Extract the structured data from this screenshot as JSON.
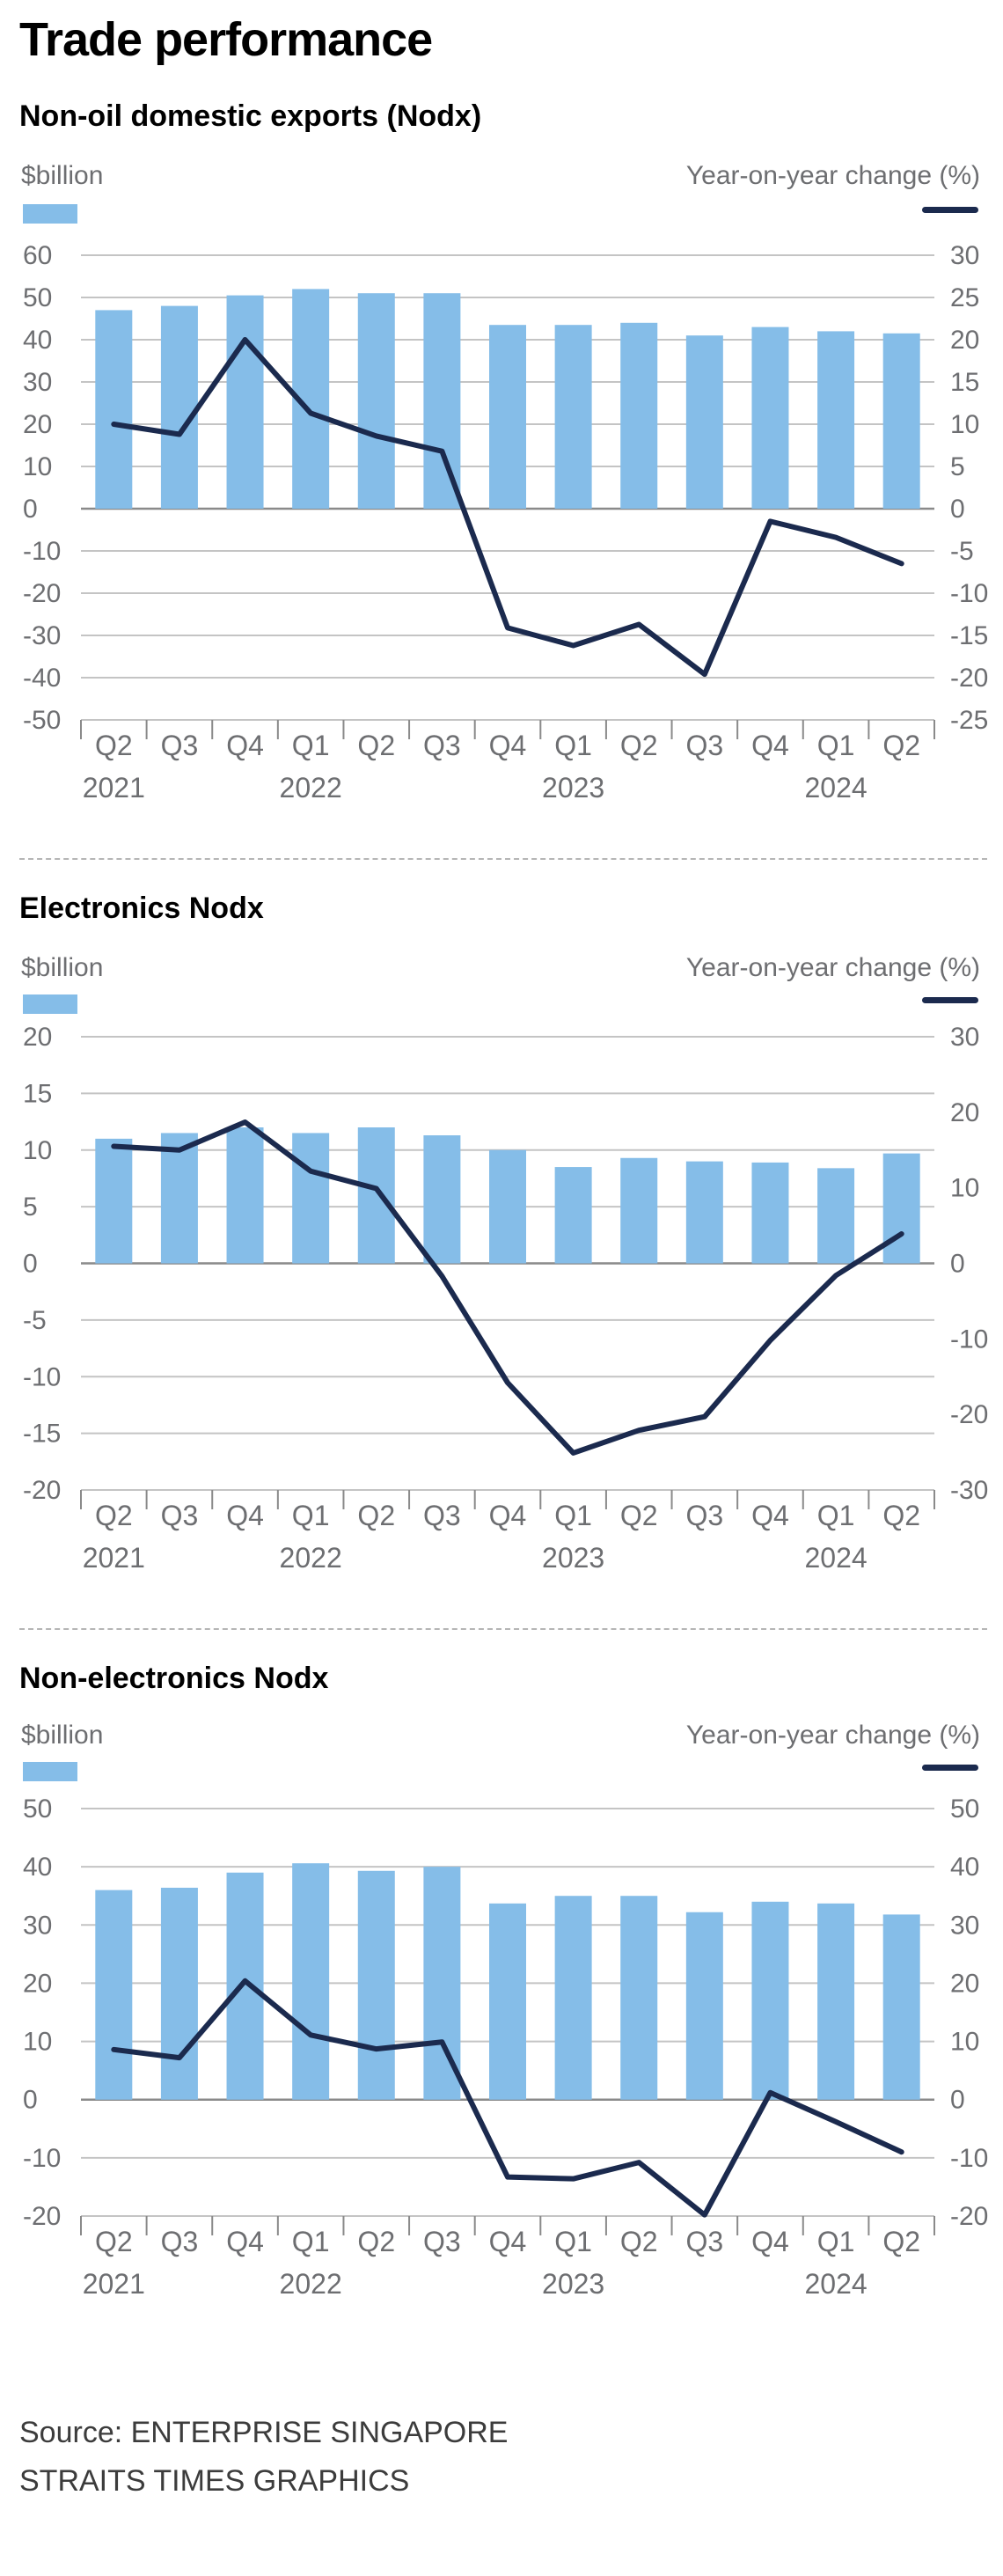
{
  "title": "Trade performance",
  "source": "Source: ENTERPRISE SINGAPORE",
  "credit": "STRAITS TIMES GRAPHICS",
  "colors": {
    "bar": "#85bde8",
    "line": "#1b2a4e",
    "grid": "#c4c4c4",
    "axis": "#6d6e71"
  },
  "chart_data": [
    {
      "type": "bar",
      "title": "Non-oil domestic exports (Nodx)",
      "left_unit": "$billion",
      "right_unit": "Year-on-year change (%)",
      "categories": [
        "Q2",
        "Q3",
        "Q4",
        "Q1",
        "Q2",
        "Q3",
        "Q4",
        "Q1",
        "Q2",
        "Q3",
        "Q4",
        "Q1",
        "Q2"
      ],
      "years": [
        "2021",
        "",
        "",
        "2022",
        "",
        "",
        "",
        "2023",
        "",
        "",
        "",
        "2024",
        ""
      ],
      "left_ticks": [
        "60",
        "50",
        "40",
        "30",
        "20",
        "10",
        "0",
        "-10",
        "-20",
        "-30",
        "-40",
        "-50"
      ],
      "right_ticks": [
        "30",
        "25",
        "20",
        "15",
        "10",
        "5",
        "0",
        "-5",
        "-10",
        "-15",
        "-20",
        "-25"
      ],
      "left_ylim": [
        -50,
        60
      ],
      "right_ylim": [
        -25,
        30
      ],
      "series": [
        {
          "kind": "bar",
          "axis": "left",
          "values": [
            47,
            48,
            50.5,
            52,
            51,
            51,
            43.5,
            43.5,
            44,
            41,
            43,
            42,
            41.5
          ]
        },
        {
          "kind": "line",
          "axis": "right",
          "values": [
            10,
            8.8,
            20,
            11.3,
            8.6,
            6.8,
            -14.1,
            -16.2,
            -13.7,
            -19.6,
            -1.5,
            -3.4,
            -6.5
          ]
        }
      ]
    },
    {
      "type": "bar",
      "title": "Electronics Nodx",
      "left_unit": "$billion",
      "right_unit": "Year-on-year change (%)",
      "categories": [
        "Q2",
        "Q3",
        "Q4",
        "Q1",
        "Q2",
        "Q3",
        "Q4",
        "Q1",
        "Q2",
        "Q3",
        "Q4",
        "Q1",
        "Q2"
      ],
      "years": [
        "2021",
        "",
        "",
        "2022",
        "",
        "",
        "",
        "2023",
        "",
        "",
        "",
        "2024",
        ""
      ],
      "left_ticks": [
        "20",
        "15",
        "10",
        "5",
        "0",
        "-5",
        "-10",
        "-15",
        "-20"
      ],
      "right_ticks": [
        "30",
        "20",
        "10",
        "0",
        "-10",
        "-20",
        "-30"
      ],
      "left_ylim": [
        -20,
        20
      ],
      "right_ylim": [
        -30,
        30
      ],
      "series": [
        {
          "kind": "bar",
          "axis": "left",
          "values": [
            11,
            11.5,
            12,
            11.5,
            12,
            11.3,
            10,
            8.5,
            9.3,
            9,
            8.9,
            8.4,
            9.7
          ]
        },
        {
          "kind": "line",
          "axis": "right",
          "values": [
            15.5,
            15,
            18.7,
            12.2,
            9.9,
            -1.7,
            -15.8,
            -25.1,
            -22.1,
            -20.3,
            -10.2,
            -1.6,
            3.9
          ]
        }
      ]
    },
    {
      "type": "bar",
      "title": "Non-electronics Nodx",
      "left_unit": "$billion",
      "right_unit": "Year-on-year change (%)",
      "categories": [
        "Q2",
        "Q3",
        "Q4",
        "Q1",
        "Q2",
        "Q3",
        "Q4",
        "Q1",
        "Q2",
        "Q3",
        "Q4",
        "Q1",
        "Q2"
      ],
      "years": [
        "2021",
        "",
        "",
        "2022",
        "",
        "",
        "",
        "2023",
        "",
        "",
        "",
        "2024",
        ""
      ],
      "left_ticks": [
        "50",
        "40",
        "30",
        "20",
        "10",
        "0",
        "-10",
        "-20"
      ],
      "right_ticks": [
        "50",
        "40",
        "30",
        "20",
        "10",
        "0",
        "-10",
        "-20"
      ],
      "left_ylim": [
        -20,
        50
      ],
      "right_ylim": [
        -20,
        50
      ],
      "series": [
        {
          "kind": "bar",
          "axis": "left",
          "values": [
            36,
            36.4,
            39,
            40.6,
            39.3,
            40,
            33.7,
            35,
            35,
            32.2,
            34,
            33.7,
            31.8
          ]
        },
        {
          "kind": "line",
          "axis": "right",
          "values": [
            8.6,
            7.2,
            20.4,
            11.1,
            8.7,
            9.9,
            -13.3,
            -13.6,
            -10.8,
            -19.8,
            1.2,
            -3.8,
            -9
          ]
        }
      ]
    }
  ]
}
